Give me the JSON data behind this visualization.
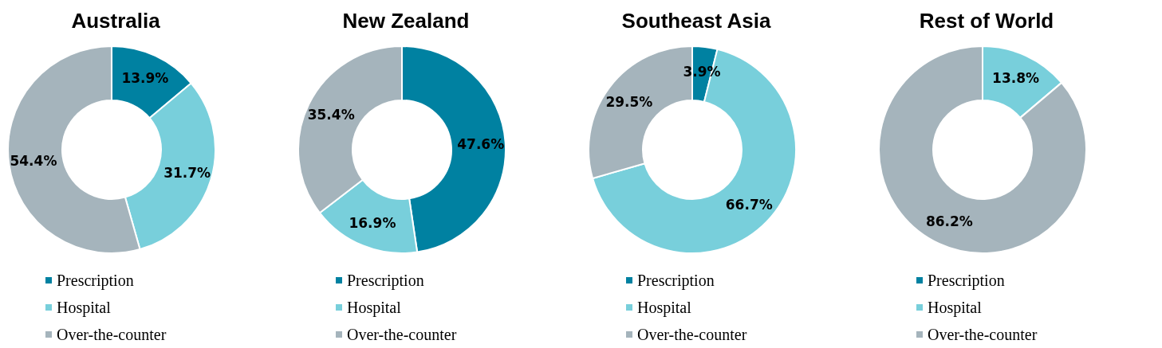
{
  "chart_data": [
    {
      "type": "donut",
      "title": "Australia",
      "categories": [
        "Prescription",
        "Hospital",
        "Over-the-counter"
      ],
      "values": [
        13.9,
        31.7,
        54.4
      ],
      "colors": [
        "#0081a1",
        "#78cfdb",
        "#a5b4bc"
      ],
      "value_labels": [
        "13.9%",
        "31.7%",
        "54.4%"
      ],
      "legend": "bottom left"
    },
    {
      "type": "donut",
      "title": "New Zealand",
      "categories": [
        "Prescription",
        "Hospital",
        "Over-the-counter"
      ],
      "values": [
        47.6,
        16.9,
        35.4
      ],
      "colors": [
        "#0081a1",
        "#78cfdb",
        "#a5b4bc"
      ],
      "value_labels": [
        "47.6%",
        "16.9%",
        "35.4%"
      ],
      "legend": "bottom left"
    },
    {
      "type": "donut",
      "title": "Southeast Asia",
      "categories": [
        "Prescription",
        "Hospital",
        "Over-the-counter"
      ],
      "values": [
        3.9,
        66.7,
        29.5
      ],
      "colors": [
        "#0081a1",
        "#78cfdb",
        "#a5b4bc"
      ],
      "value_labels": [
        "3.9%",
        "66.7%",
        "29.5%"
      ],
      "legend": "bottom left"
    },
    {
      "type": "donut",
      "title": "Rest of World",
      "categories": [
        "Prescription",
        "Hospital",
        "Over-the-counter"
      ],
      "values": [
        0,
        13.8,
        86.2
      ],
      "colors": [
        "#0081a1",
        "#78cfdb",
        "#a5b4bc"
      ],
      "value_labels": [
        null,
        "13.8%",
        "86.2%"
      ],
      "legend": "bottom left"
    }
  ]
}
